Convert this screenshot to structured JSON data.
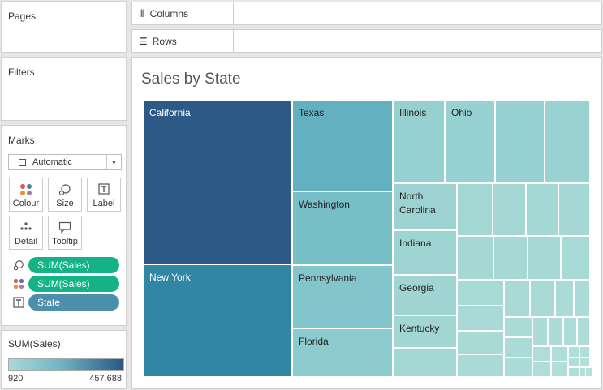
{
  "sidebar": {
    "pages_title": "Pages",
    "filters_title": "Filters",
    "marks": {
      "title": "Marks",
      "mark_type": "Automatic",
      "buttons": [
        {
          "label": "Colour",
          "icon": "colour-icon"
        },
        {
          "label": "Size",
          "icon": "size-icon"
        },
        {
          "label": "Label",
          "icon": "label-icon"
        },
        {
          "label": "Detail",
          "icon": "detail-icon"
        },
        {
          "label": "Tooltip",
          "icon": "tooltip-icon"
        }
      ],
      "pills": [
        {
          "label": "SUM(Sales)",
          "icon": "size-icon",
          "color": "#13b387"
        },
        {
          "label": "SUM(Sales)",
          "icon": "colour-icon",
          "color": "#13b387"
        },
        {
          "label": "State",
          "icon": "label-icon",
          "color": "#4b8fab"
        }
      ]
    },
    "legend": {
      "title": "SUM(Sales)",
      "min": "920",
      "max": "457,688",
      "color_low": "#a7dad6",
      "color_high": "#2a5783"
    }
  },
  "shelves": {
    "columns_label": "Columns",
    "rows_label": "Rows"
  },
  "view": {
    "title": "Sales by State"
  },
  "chart_data": {
    "type": "treemap",
    "labeled_states": [
      "California",
      "New York",
      "Texas",
      "Washington",
      "Pennsylvania",
      "Florida",
      "Illinois",
      "Ohio",
      "North Carolina",
      "Indiana",
      "Georgia",
      "Kentucky"
    ]
  }
}
